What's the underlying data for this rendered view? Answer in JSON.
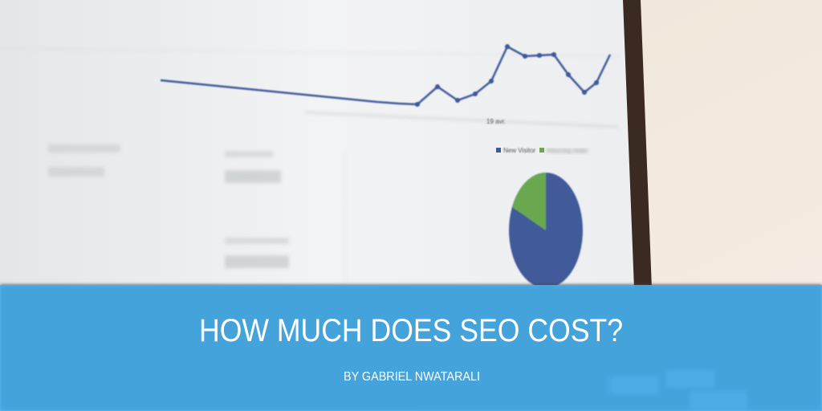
{
  "banner": {
    "title": "HOW MUCH DOES SEO COST?",
    "byline": "BY GABRIEL NWATARALI"
  },
  "screen": {
    "legend": [
      "New Visitor",
      "Returning Visitor"
    ],
    "axis_label": "19 avr."
  }
}
